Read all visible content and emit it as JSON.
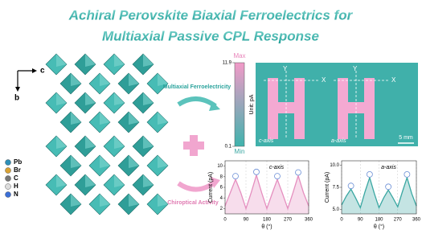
{
  "title_lines": [
    "Achiral Perovskite Biaxial Ferroelectrics for",
    "Multiaxial Passive CPL Response"
  ],
  "structure": {
    "axis_c": "c",
    "axis_b": "b",
    "elements": [
      "Pb",
      "Br",
      "C",
      "H",
      "N"
    ]
  },
  "processes": {
    "top": "Multiaxial Ferroelectricity",
    "bottom": "Chiroptical Activity"
  },
  "imaging": {
    "max_label": "Max",
    "min_label": "Min",
    "unit_label": "Unit: pA",
    "lim": [
      0.1,
      11.9
    ],
    "ticks": [
      11.9,
      0.1
    ],
    "panels": [
      "c-axis",
      "a-axis"
    ],
    "axis_y": "Y",
    "axis_x": "X",
    "scale_label": "5 mm"
  },
  "chart_data": [
    {
      "type": "line",
      "title": "c-axis",
      "xlabel": "θ (°)",
      "ylabel": "Current (pA)",
      "color": "#e58fbf",
      "x": [
        0,
        22.5,
        45,
        67.5,
        90,
        112.5,
        135,
        157.5,
        180,
        202.5,
        225,
        247.5,
        270,
        292.5,
        315,
        337.5,
        360
      ],
      "values": [
        2.5,
        5,
        7.5,
        5,
        2,
        5,
        8.3,
        5,
        2,
        4.8,
        7.5,
        4.8,
        2,
        5,
        8.2,
        5,
        2.5
      ],
      "xlim": [
        0,
        360
      ],
      "xticks": [
        0,
        90,
        180,
        270,
        360
      ],
      "ylim": [
        1,
        11
      ],
      "yticks": [
        2,
        4,
        6,
        8,
        10
      ]
    },
    {
      "type": "line",
      "title": "a-axis",
      "xlabel": "θ (°)",
      "ylabel": "Current (pA)",
      "color": "#3aa7a2",
      "x": [
        0,
        22.5,
        45,
        67.5,
        90,
        112.5,
        135,
        157.5,
        180,
        202.5,
        225,
        247.5,
        270,
        292.5,
        315,
        337.5,
        360
      ],
      "values": [
        5.5,
        6.5,
        7.3,
        6.3,
        5.2,
        7,
        8.6,
        6.8,
        5.2,
        6.3,
        7.2,
        6.3,
        5.3,
        7,
        8.6,
        6.8,
        5.4
      ],
      "xlim": [
        0,
        360
      ],
      "xticks": [
        0,
        90,
        180,
        270,
        360
      ],
      "ylim": [
        4.5,
        10.5
      ],
      "yticks": [
        {
          "value": 5,
          "label": "5.0"
        },
        {
          "value": 7.5,
          "label": "7.5"
        },
        {
          "value": 10,
          "label": "10.0"
        }
      ]
    }
  ]
}
